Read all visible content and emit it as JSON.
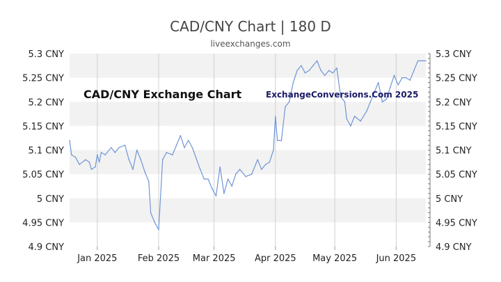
{
  "header": {
    "title": "CAD/CNY Chart | 180 D",
    "subtitle": "liveexchanges.com"
  },
  "watermarks": {
    "left": "CAD/CNY Exchange Chart",
    "right": "ExchangeConversions.Com 2025"
  },
  "colors": {
    "line": "#6f95d6",
    "band": "#f2f2f2",
    "grid": "#d0d0d0"
  },
  "chart_data": {
    "type": "line",
    "title": "CAD/CNY Chart | 180 D",
    "xlabel": "",
    "ylabel": "",
    "ylim": [
      4.9,
      5.3
    ],
    "x_range": [
      "2024-12-18",
      "2025-06-16"
    ],
    "y_ticks": [
      {
        "value": 5.3,
        "label": "5.3 CNY"
      },
      {
        "value": 5.25,
        "label": "5.25 CNY"
      },
      {
        "value": 5.2,
        "label": "5.2 CNY"
      },
      {
        "value": 5.15,
        "label": "5.15 CNY"
      },
      {
        "value": 5.1,
        "label": "5.1 CNY"
      },
      {
        "value": 5.05,
        "label": "5.05 CNY"
      },
      {
        "value": 5.0,
        "label": "5 CNY"
      },
      {
        "value": 4.95,
        "label": "4.95 CNY"
      },
      {
        "value": 4.9,
        "label": "4.9 CNY"
      }
    ],
    "x_ticks": [
      {
        "date": "2025-01-01",
        "label": "Jan 2025"
      },
      {
        "date": "2025-02-01",
        "label": "Feb 2025"
      },
      {
        "date": "2025-03-01",
        "label": "Mar 2025"
      },
      {
        "date": "2025-04-01",
        "label": "Apr 2025"
      },
      {
        "date": "2025-05-01",
        "label": "May 2025"
      },
      {
        "date": "2025-06-01",
        "label": "Jun 2025"
      }
    ],
    "series": [
      {
        "points": [
          [
            "2024-12-18",
            5.12
          ],
          [
            "2024-12-19",
            5.09
          ],
          [
            "2024-12-21",
            5.085
          ],
          [
            "2024-12-23",
            5.07
          ],
          [
            "2024-12-26",
            5.08
          ],
          [
            "2024-12-28",
            5.075
          ],
          [
            "2024-12-29",
            5.06
          ],
          [
            "2024-12-31",
            5.065
          ],
          [
            "2025-01-01",
            5.09
          ],
          [
            "2025-01-02",
            5.075
          ],
          [
            "2025-01-03",
            5.095
          ],
          [
            "2025-01-05",
            5.09
          ],
          [
            "2025-01-08",
            5.105
          ],
          [
            "2025-01-10",
            5.095
          ],
          [
            "2025-01-12",
            5.105
          ],
          [
            "2025-01-15",
            5.11
          ],
          [
            "2025-01-17",
            5.08
          ],
          [
            "2025-01-19",
            5.06
          ],
          [
            "2025-01-21",
            5.1
          ],
          [
            "2025-01-23",
            5.08
          ],
          [
            "2025-01-25",
            5.055
          ],
          [
            "2025-01-27",
            5.035
          ],
          [
            "2025-01-28",
            4.97
          ],
          [
            "2025-01-30",
            4.95
          ],
          [
            "2025-02-01",
            4.935
          ],
          [
            "2025-02-03",
            5.08
          ],
          [
            "2025-02-05",
            5.095
          ],
          [
            "2025-02-08",
            5.09
          ],
          [
            "2025-02-10",
            5.11
          ],
          [
            "2025-02-12",
            5.13
          ],
          [
            "2025-02-14",
            5.105
          ],
          [
            "2025-02-16",
            5.12
          ],
          [
            "2025-02-18",
            5.105
          ],
          [
            "2025-02-22",
            5.06
          ],
          [
            "2025-02-24",
            5.04
          ],
          [
            "2025-02-26",
            5.04
          ],
          [
            "2025-02-28",
            5.02
          ],
          [
            "2025-03-02",
            5.005
          ],
          [
            "2025-03-04",
            5.065
          ],
          [
            "2025-03-06",
            5.01
          ],
          [
            "2025-03-08",
            5.04
          ],
          [
            "2025-03-10",
            5.025
          ],
          [
            "2025-03-12",
            5.05
          ],
          [
            "2025-03-14",
            5.06
          ],
          [
            "2025-03-17",
            5.045
          ],
          [
            "2025-03-20",
            5.05
          ],
          [
            "2025-03-23",
            5.08
          ],
          [
            "2025-03-25",
            5.06
          ],
          [
            "2025-03-27",
            5.07
          ],
          [
            "2025-03-29",
            5.075
          ],
          [
            "2025-03-31",
            5.1
          ],
          [
            "2025-04-01",
            5.17
          ],
          [
            "2025-04-02",
            5.12
          ],
          [
            "2025-04-04",
            5.12
          ],
          [
            "2025-04-06",
            5.19
          ],
          [
            "2025-04-08",
            5.2
          ],
          [
            "2025-04-10",
            5.24
          ],
          [
            "2025-04-12",
            5.265
          ],
          [
            "2025-04-14",
            5.275
          ],
          [
            "2025-04-16",
            5.26
          ],
          [
            "2025-04-18",
            5.265
          ],
          [
            "2025-04-20",
            5.275
          ],
          [
            "2025-04-22",
            5.285
          ],
          [
            "2025-04-24",
            5.265
          ],
          [
            "2025-04-26",
            5.255
          ],
          [
            "2025-04-28",
            5.265
          ],
          [
            "2025-04-30",
            5.26
          ],
          [
            "2025-05-02",
            5.27
          ],
          [
            "2025-05-04",
            5.21
          ],
          [
            "2025-05-06",
            5.2
          ],
          [
            "2025-05-07",
            5.165
          ],
          [
            "2025-05-09",
            5.15
          ],
          [
            "2025-05-11",
            5.17
          ],
          [
            "2025-05-14",
            5.16
          ],
          [
            "2025-05-17",
            5.18
          ],
          [
            "2025-05-19",
            5.2
          ],
          [
            "2025-05-21",
            5.22
          ],
          [
            "2025-05-23",
            5.24
          ],
          [
            "2025-05-25",
            5.2
          ],
          [
            "2025-05-27",
            5.205
          ],
          [
            "2025-05-29",
            5.23
          ],
          [
            "2025-05-31",
            5.255
          ],
          [
            "2025-06-02",
            5.235
          ],
          [
            "2025-06-04",
            5.25
          ],
          [
            "2025-06-06",
            5.25
          ],
          [
            "2025-06-08",
            5.245
          ],
          [
            "2025-06-10",
            5.265
          ],
          [
            "2025-06-12",
            5.285
          ],
          [
            "2025-06-14",
            5.285
          ],
          [
            "2025-06-16",
            5.285
          ]
        ]
      }
    ]
  }
}
